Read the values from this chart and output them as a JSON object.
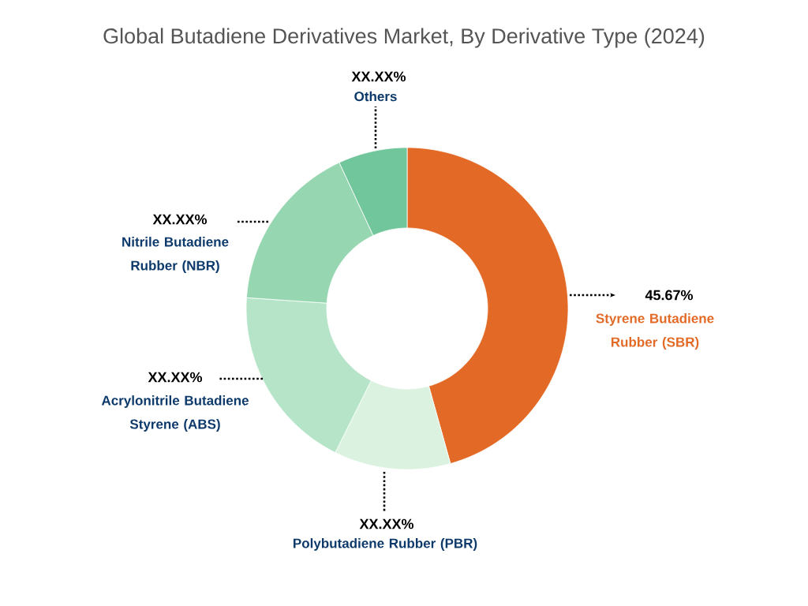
{
  "chart_data": {
    "type": "donut",
    "title": "Global Butadiene Derivatives Market, By Derivative Type (2024)",
    "categories": [
      "Styrene Butadiene Rubber (SBR)",
      "Polybutadiene Rubber (PBR)",
      "Acrylonitrile Butadiene Styrene (ABS)",
      "Nitrile Butadiene Rubber (NBR)",
      "Others"
    ],
    "values": [
      45.67,
      11.7,
      18.7,
      17.0,
      6.93
    ],
    "colors": [
      "#e36a26",
      "#dcf2e0",
      "#b5e4c8",
      "#96d6b0",
      "#72c69c"
    ],
    "value_labels": [
      "45.67%",
      "XX.XX%",
      "XX.XX%",
      "XX.XX%",
      "XX.XX%"
    ]
  }
}
